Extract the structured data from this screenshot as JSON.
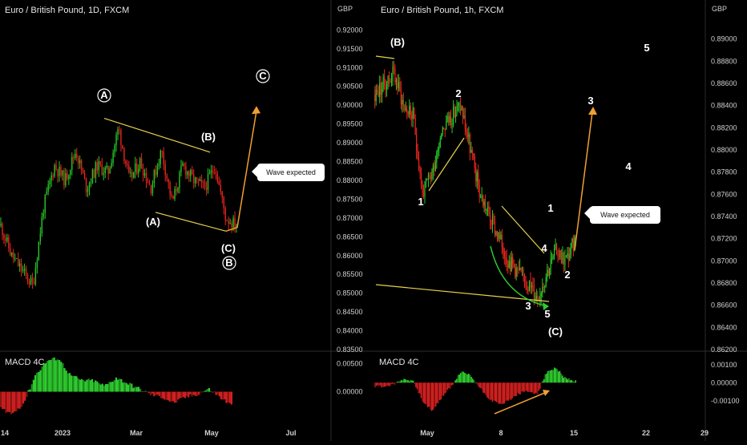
{
  "chart_data": [
    {
      "type": "candlestick",
      "title": "Euro / British Pound, 1D, FXCM",
      "currency": "GBP",
      "y_ticks": [
        "0.92000",
        "0.91500",
        "0.91000",
        "0.90500",
        "0.90000",
        "0.89500",
        "0.89000",
        "0.88500",
        "0.88000",
        "0.87500",
        "0.87000",
        "0.86500",
        "0.86000",
        "0.85500",
        "0.85000",
        "0.84500",
        "0.84000",
        "0.83500"
      ],
      "ylim": [
        0.835,
        0.922
      ],
      "x_ticks": [
        "14",
        "2023",
        "Mar",
        "May",
        "Jul"
      ],
      "price_path": [
        0.868,
        0.86,
        0.856,
        0.852,
        0.873,
        0.884,
        0.88,
        0.888,
        0.878,
        0.884,
        0.882,
        0.894,
        0.88,
        0.885,
        0.878,
        0.888,
        0.874,
        0.884,
        0.88,
        0.878,
        0.884,
        0.87,
        0.868
      ],
      "wave_labels": [
        "A",
        "(B)",
        "C",
        "(A)",
        "(C)",
        "B"
      ],
      "callout": "Wave expected",
      "indicator": {
        "name": "MACD 4C",
        "y_ticks": [
          "0.00500",
          "0.00000"
        ],
        "histogram": [
          -0.003,
          -0.004,
          -0.002,
          0.003,
          0.0055,
          0.006,
          0.003,
          0.002,
          0.002,
          0.001,
          0.0025,
          0.0015,
          0.0005,
          -0.0005,
          -0.001,
          -0.002,
          -0.001,
          -0.0005,
          0.0005,
          -0.001,
          -0.0025
        ]
      }
    },
    {
      "type": "candlestick",
      "title": "Euro / British Pound, 1h, FXCM",
      "currency": "GBP",
      "y_ticks": [
        "0.89000",
        "0.88800",
        "0.88600",
        "0.88400",
        "0.88200",
        "0.88000",
        "0.87800",
        "0.87600",
        "0.87400",
        "0.87200",
        "0.87000",
        "0.86800",
        "0.86600",
        "0.86400",
        "0.86200"
      ],
      "ylim": [
        0.862,
        0.8915
      ],
      "x_ticks": [
        "May",
        "8",
        "15",
        "22",
        "29"
      ],
      "price_path": [
        0.885,
        0.886,
        0.887,
        0.884,
        0.883,
        0.876,
        0.878,
        0.882,
        0.883,
        0.884,
        0.88,
        0.876,
        0.874,
        0.872,
        0.87,
        0.869,
        0.868,
        0.8667,
        0.869,
        0.871,
        0.87,
        0.872
      ],
      "wave_labels": [
        "(B)",
        "2",
        "1",
        "3",
        "4",
        "5",
        "1",
        "2",
        "3",
        "4",
        "5",
        "(C)"
      ],
      "callout": "Wave expected",
      "indicator": {
        "name": "MACD 4C",
        "y_ticks": [
          "0.00100",
          "0.00000",
          "-0.00100"
        ],
        "histogram": [
          -0.0002,
          -0.0002,
          -0.0001,
          0.0002,
          0.0001,
          -0.001,
          -0.0016,
          -0.0008,
          -0.0002,
          0.0006,
          0.0004,
          -0.0003,
          -0.0009,
          -0.0012,
          -0.001,
          -0.0006,
          -0.0005,
          -0.0006,
          0.0006,
          0.0008,
          0.0002,
          0.0001
        ]
      }
    }
  ]
}
